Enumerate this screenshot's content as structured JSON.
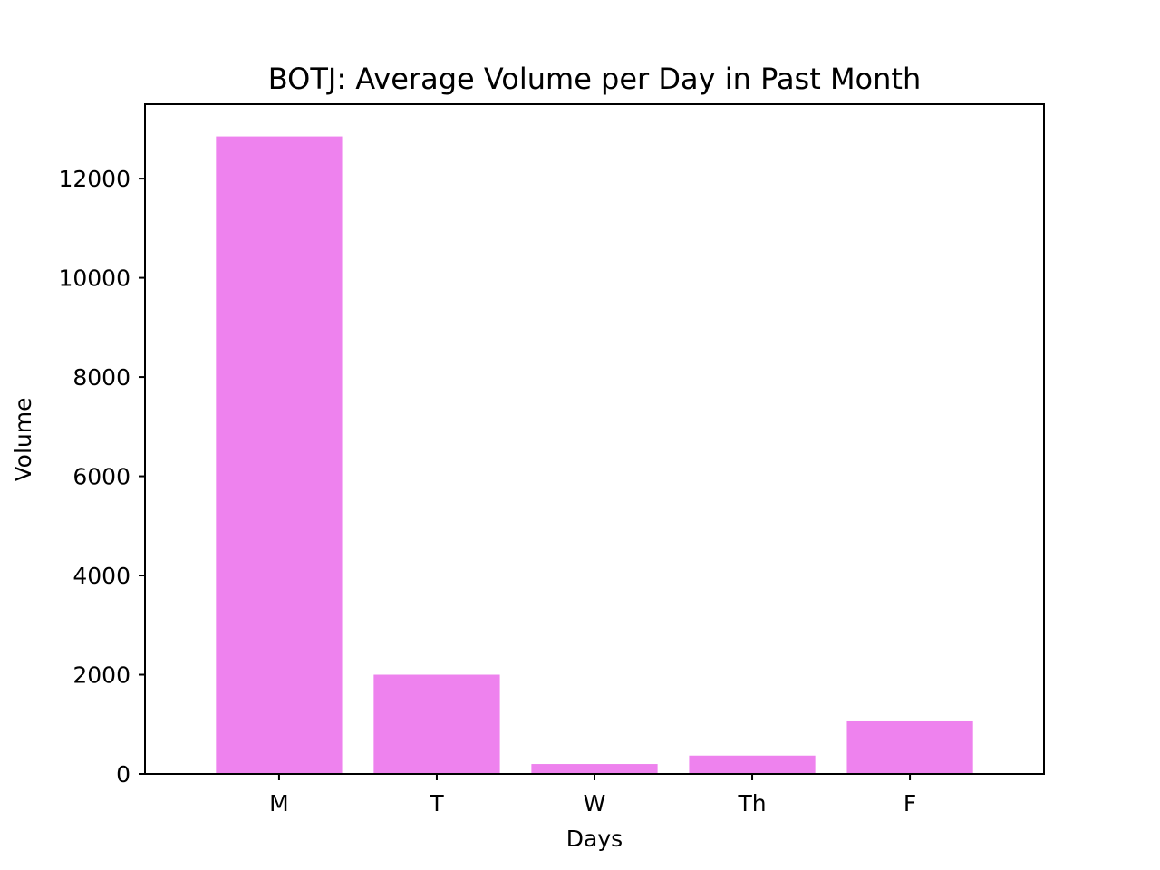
{
  "chart_data": {
    "type": "bar",
    "title": "BOTJ: Average Volume per Day in Past Month",
    "xlabel": "Days",
    "ylabel": "Volume",
    "categories": [
      "M",
      "T",
      "W",
      "Th",
      "F"
    ],
    "values": [
      12850,
      2000,
      200,
      370,
      1060
    ],
    "ylim": [
      0,
      13500
    ],
    "yticks": [
      0,
      2000,
      4000,
      6000,
      8000,
      10000,
      12000
    ],
    "bar_color": "#ee82ee",
    "grid": false
  }
}
